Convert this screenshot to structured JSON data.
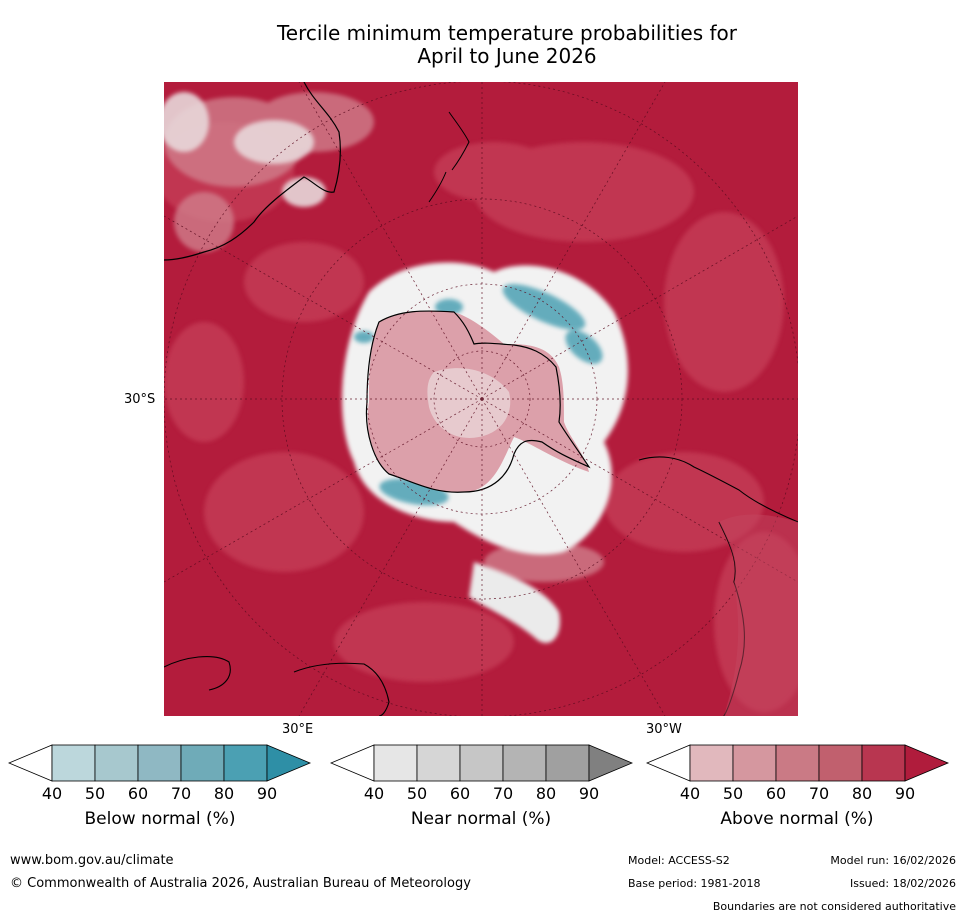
{
  "title_line1": "Tercile minimum temperature probabilities for",
  "title_line2": "April to June 2026",
  "map": {
    "projection": "south polar stereographic",
    "lat_label": "30°S",
    "lon_label_east": "30°E",
    "lon_label_west": "30°W"
  },
  "colorbars": [
    {
      "name": "below",
      "title": "Below normal (%)",
      "ticks": [
        "40",
        "50",
        "60",
        "70",
        "80",
        "90"
      ],
      "colors": [
        "#ffffff",
        "#bcd7dc",
        "#a7c8ce",
        "#8fb8c3",
        "#6fabb8",
        "#4ba0b3",
        "#2e8fa6"
      ]
    },
    {
      "name": "near",
      "title": "Near normal (%)",
      "ticks": [
        "40",
        "50",
        "60",
        "70",
        "80",
        "90"
      ],
      "colors": [
        "#ffffff",
        "#e6e6e6",
        "#d6d6d6",
        "#c6c6c6",
        "#b4b4b4",
        "#a0a0a0",
        "#808080"
      ]
    },
    {
      "name": "above",
      "title": "Above normal (%)",
      "ticks": [
        "40",
        "50",
        "60",
        "70",
        "80",
        "90"
      ],
      "colors": [
        "#ffffff",
        "#e1b8bd",
        "#d5979f",
        "#ca7a85",
        "#c1606e",
        "#b83650",
        "#b01c3c"
      ]
    }
  ],
  "footer": {
    "url": "www.bom.gov.au/climate",
    "copyright": "© Commonwealth of Australia 2026, Australian Bureau of Meteorology",
    "model": "Model: ACCESS-S2",
    "model_run": "Model run: 16/02/2026",
    "base_period": "Base period: 1981-2018",
    "issued": "Issued: 18/02/2026",
    "disclaimer": "Boundaries are not considered authoritative"
  }
}
